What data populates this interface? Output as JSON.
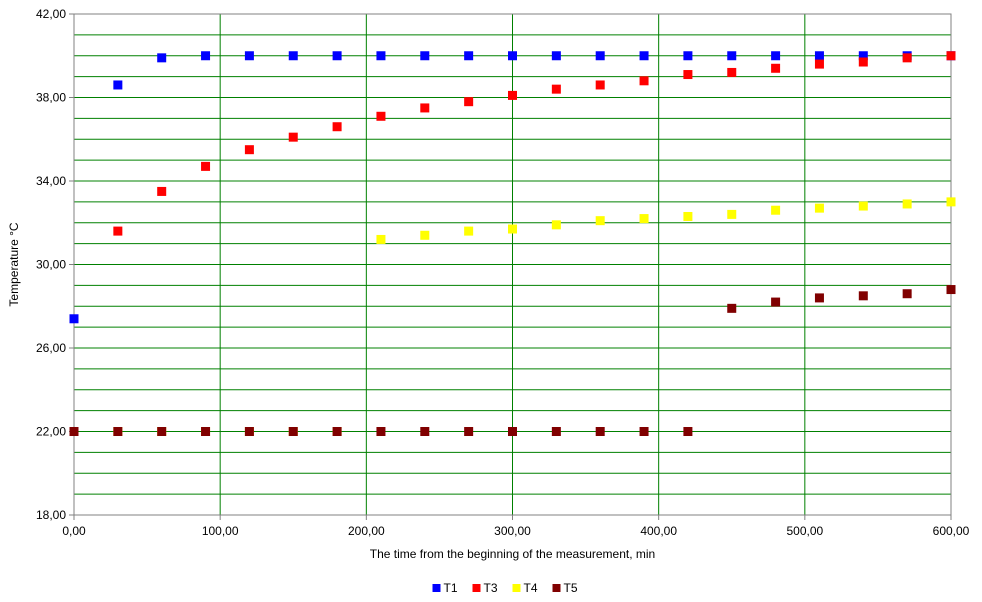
{
  "chart_data": {
    "type": "scatter",
    "title": "",
    "xlabel": "The time from the beginning of the measurement, min",
    "ylabel": "Temperature °C",
    "xlim": [
      0,
      600
    ],
    "ylim": [
      18,
      42
    ],
    "x_ticks": [
      "0,00",
      "100,00",
      "200,00",
      "300,00",
      "400,00",
      "500,00",
      "600,00"
    ],
    "y_ticks": [
      "18,00",
      "22,00",
      "26,00",
      "30,00",
      "34,00",
      "38,00",
      "42,00"
    ],
    "grid": true,
    "grid_color": "#008000",
    "legend_position": "bottom",
    "series": [
      {
        "name": "T1",
        "color": "#0000FF",
        "x": [
          0,
          30,
          60,
          90,
          120,
          150,
          180,
          210,
          240,
          270,
          300,
          330,
          360,
          390,
          420,
          450,
          480,
          510,
          540,
          570,
          600
        ],
        "y": [
          27.4,
          38.6,
          39.9,
          40.0,
          40.0,
          40.0,
          40.0,
          40.0,
          40.0,
          40.0,
          40.0,
          40.0,
          40.0,
          40.0,
          40.0,
          40.0,
          40.0,
          40.0,
          40.0,
          40.0,
          40.0
        ]
      },
      {
        "name": "T3",
        "color": "#FF0000",
        "x": [
          0,
          30,
          60,
          90,
          120,
          150,
          180,
          210,
          240,
          270,
          300,
          330,
          360,
          390,
          420,
          450,
          480,
          510,
          540,
          570,
          600
        ],
        "y": [
          22.0,
          31.6,
          33.5,
          34.7,
          35.5,
          36.1,
          36.6,
          37.1,
          37.5,
          37.8,
          38.1,
          38.4,
          38.6,
          38.8,
          39.1,
          39.2,
          39.4,
          39.6,
          39.7,
          39.9,
          40.0
        ]
      },
      {
        "name": "T4",
        "color": "#FFFF00",
        "x": [
          0,
          30,
          60,
          90,
          120,
          150,
          180,
          210,
          240,
          270,
          300,
          330,
          360,
          390,
          420,
          450,
          480,
          510,
          540,
          570,
          600
        ],
        "y": [
          22.0,
          22.0,
          22.0,
          22.0,
          22.0,
          22.0,
          22.0,
          31.2,
          31.4,
          31.6,
          31.7,
          31.9,
          32.1,
          32.2,
          32.3,
          32.4,
          32.6,
          32.7,
          32.8,
          32.9,
          33.0
        ]
      },
      {
        "name": "T5",
        "color": "#800000",
        "x": [
          0,
          30,
          60,
          90,
          120,
          150,
          180,
          210,
          240,
          270,
          300,
          330,
          360,
          390,
          420,
          450,
          480,
          510,
          540,
          570,
          600
        ],
        "y": [
          22.0,
          22.0,
          22.0,
          22.0,
          22.0,
          22.0,
          22.0,
          22.0,
          22.0,
          22.0,
          22.0,
          22.0,
          22.0,
          22.0,
          22.0,
          27.9,
          28.2,
          28.4,
          28.5,
          28.6,
          28.8
        ]
      }
    ]
  }
}
